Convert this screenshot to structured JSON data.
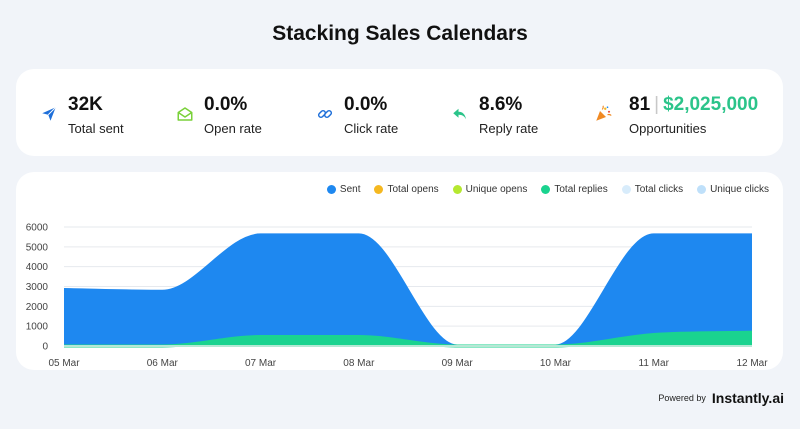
{
  "page": {
    "title": "Stacking Sales Calendars"
  },
  "stats": [
    {
      "value": "32K",
      "label": "Total sent",
      "icon": "paper-plane-icon",
      "color": "#1e6fd9"
    },
    {
      "value": "0.0%",
      "label": "Open rate",
      "icon": "open-envelope-icon",
      "color": "#7ad13a"
    },
    {
      "value": "0.0%",
      "label": "Click rate",
      "icon": "link-icon",
      "color": "#1e6fd9"
    },
    {
      "value": "8.6%",
      "label": "Reply rate",
      "icon": "reply-arrow-icon",
      "color": "#2bc48a"
    },
    {
      "value_count": "81",
      "separator": "|",
      "value_amount": "$2,025,000",
      "label": "Opportunities",
      "icon": "party-popper-icon",
      "color": "#f08a24"
    }
  ],
  "legend": [
    {
      "name": "Sent",
      "color": "#1e88f0"
    },
    {
      "name": "Total opens",
      "color": "#f5b820"
    },
    {
      "name": "Unique opens",
      "color": "#b5e830"
    },
    {
      "name": "Total replies",
      "color": "#1ad38f"
    },
    {
      "name": "Total clicks",
      "color": "#d8ecfb"
    },
    {
      "name": "Unique clicks",
      "color": "#bfe0fa"
    }
  ],
  "chart_data": {
    "type": "area",
    "x": [
      "05 Mar",
      "06 Mar",
      "07 Mar",
      "08 Mar",
      "09 Mar",
      "10 Mar",
      "11 Mar",
      "12 Mar"
    ],
    "ylim": [
      0,
      6000
    ],
    "yticks": [
      0,
      1000,
      2000,
      3000,
      4000,
      5000,
      6000
    ],
    "grid": true,
    "legend_position": "top-right",
    "series": [
      {
        "name": "Sent",
        "color": "#1e88f0",
        "values": [
          2850,
          2760,
          5600,
          5600,
          0,
          0,
          5600,
          5600
        ]
      },
      {
        "name": "Total replies",
        "color": "#1ad38f",
        "values": [
          0,
          0,
          480,
          480,
          0,
          0,
          580,
          700
        ]
      },
      {
        "name": "Total opens",
        "color": "#f5b820",
        "values": [
          0,
          0,
          0,
          0,
          0,
          0,
          0,
          0
        ]
      },
      {
        "name": "Unique opens",
        "color": "#b5e830",
        "values": [
          0,
          0,
          0,
          0,
          0,
          0,
          0,
          0
        ]
      },
      {
        "name": "Total clicks",
        "color": "#d8ecfb",
        "values": [
          0,
          0,
          0,
          0,
          0,
          0,
          0,
          0
        ]
      },
      {
        "name": "Unique clicks",
        "color": "#bfe0fa",
        "values": [
          0,
          0,
          0,
          0,
          0,
          0,
          0,
          0
        ]
      }
    ]
  },
  "footer": {
    "powered_label": "Powered by",
    "brand": "Instantly.ai"
  }
}
